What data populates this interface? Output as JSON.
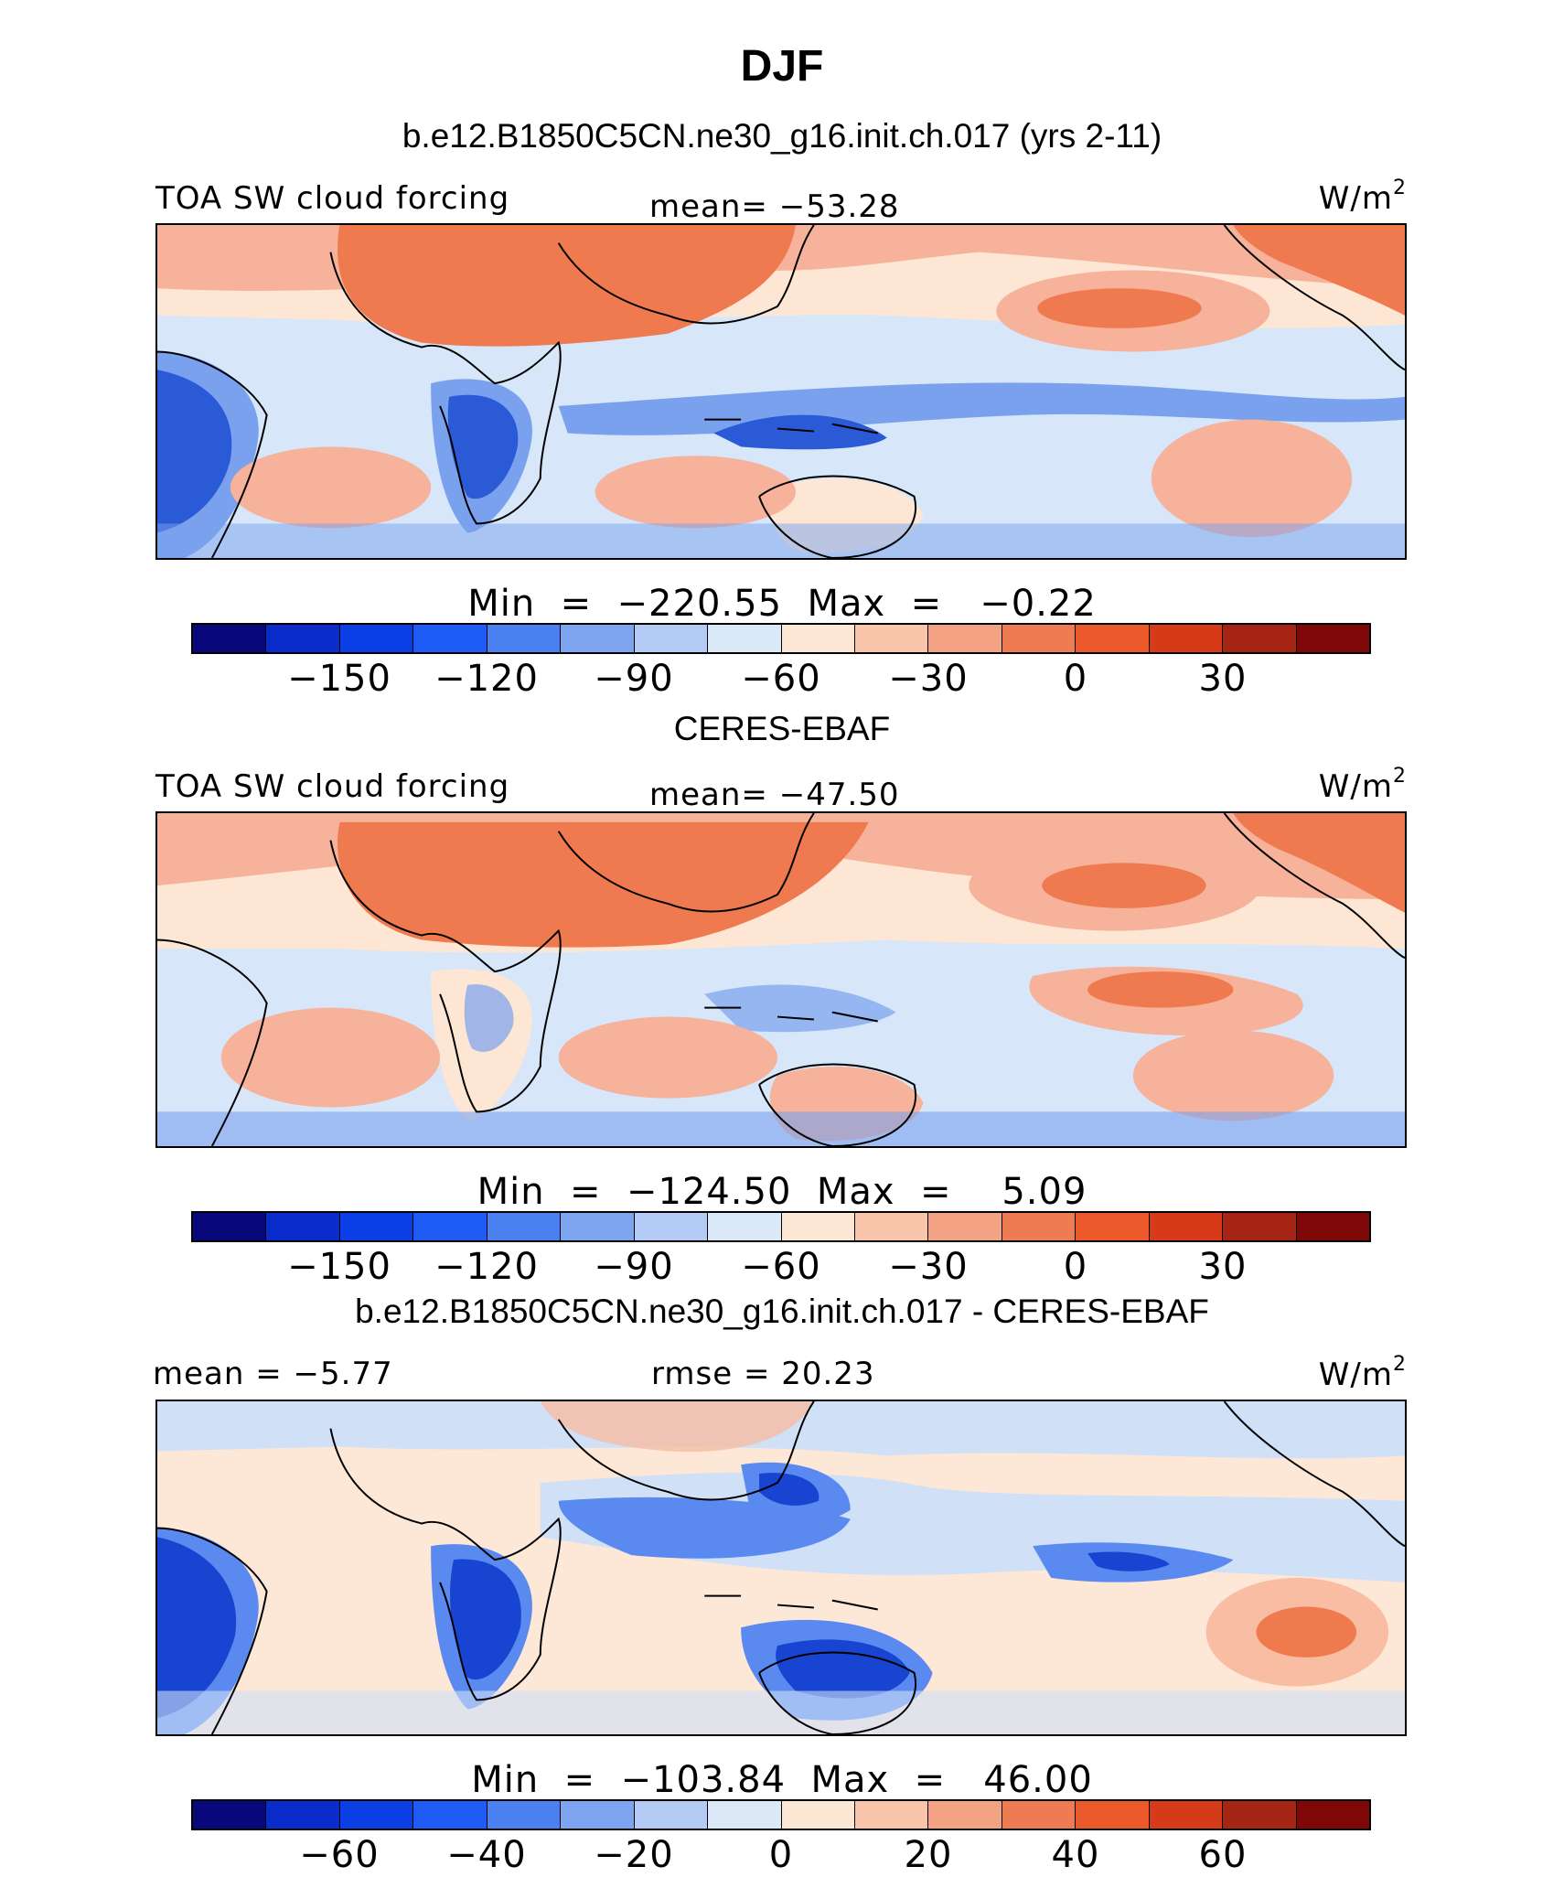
{
  "figure": {
    "season": "DJF",
    "units_base": "W/m",
    "units_exp": "2"
  },
  "palette": {
    "sequence": [
      "#08087a",
      "#0b2ccc",
      "#0a3fe6",
      "#1f5cf5",
      "#4a80f0",
      "#7ea6f0",
      "#b4ccf5",
      "#dbe8f8",
      "#fde8d6",
      "#f9c6ac",
      "#f3a283",
      "#ef7b52",
      "#ec5a2c",
      "#d73a18",
      "#a62414",
      "#7e0808"
    ],
    "abs_field_colors": {
      "deep": "#2a5ad6",
      "mid": "#79a1ee",
      "light": "#d7e6f8",
      "cream": "#fde6d4",
      "salmon": "#f6b29a",
      "orange": "#ef7a4f"
    },
    "diff_field_colors": {
      "deep": "#1744d0",
      "mid": "#5a8af0",
      "light": "#cfe0f7",
      "cream": "#fde7d6",
      "salmon": "#f8bda2",
      "orange": "#ee7a4d"
    },
    "coast": "#000000"
  },
  "panels": [
    {
      "subtitle": "b.e12.B1850C5CN.ne30_g16.init.ch.017 (yrs 2-11)",
      "left_label": "TOA SW cloud forcing",
      "center_label": "mean= −53.28",
      "minmax": "Min  =  −220.55  Max  =   −0.22",
      "min": -220.55,
      "max": -0.22,
      "mean": -53.28,
      "colorbar_ticks": [
        "−150",
        "−120",
        "−90",
        "−60",
        "−30",
        "0",
        "30"
      ]
    },
    {
      "subtitle": "CERES-EBAF",
      "left_label": "TOA SW cloud forcing",
      "center_label": "mean= −47.50",
      "minmax": "Min  =  −124.50  Max  =    5.09",
      "min": -124.5,
      "max": 5.09,
      "mean": -47.5,
      "colorbar_ticks": [
        "−150",
        "−120",
        "−90",
        "−60",
        "−30",
        "0",
        "30"
      ]
    },
    {
      "subtitle": "b.e12.B1850C5CN.ne30_g16.init.ch.017 - CERES-EBAF",
      "left_label": "mean =   −5.77",
      "center_label": "rmse =   20.23",
      "minmax": "Min  =  −103.84  Max  =   46.00",
      "min": -103.84,
      "max": 46.0,
      "mean": -5.77,
      "rmse": 20.23,
      "colorbar_ticks": [
        "−60",
        "−40",
        "−20",
        "0",
        "20",
        "40",
        "60"
      ]
    }
  ]
}
